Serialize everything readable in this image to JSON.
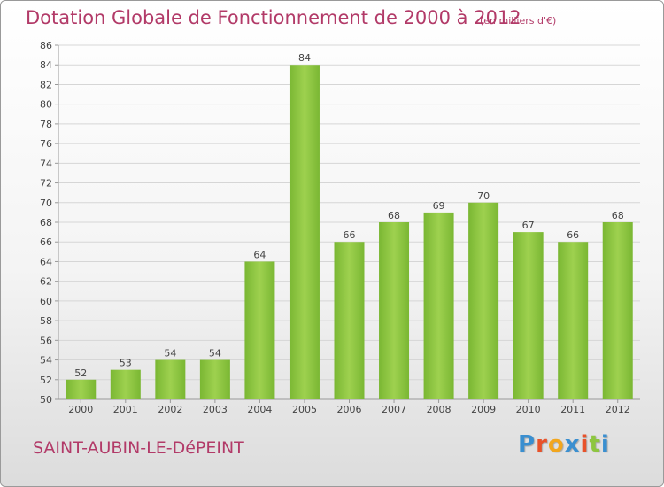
{
  "header": {
    "title": "Dotation Globale de Fonctionnement de 2000 à 2012",
    "subtitle": "(en milliers d'€)"
  },
  "footer": {
    "commune": "SAINT-AUBIN-LE-DéPEINT",
    "logo_text": "Proxiti",
    "logo_colors": [
      "#3a8fd0",
      "#e8522a",
      "#f2a61d",
      "#3a8fd0",
      "#e8522a",
      "#8dc63f",
      "#3a8fd0"
    ]
  },
  "chart_data": {
    "type": "bar",
    "categories": [
      "2000",
      "2001",
      "2002",
      "2003",
      "2004",
      "2005",
      "2006",
      "2007",
      "2008",
      "2009",
      "2010",
      "2011",
      "2012"
    ],
    "values": [
      52,
      53,
      54,
      54,
      64,
      84,
      66,
      68,
      69,
      70,
      67,
      66,
      68
    ],
    "title": "Dotation Globale de Fonctionnement de 2000 à 2012",
    "subtitle": "(en milliers d'€)",
    "ylim": [
      50,
      86
    ],
    "yticks": [
      50,
      52,
      54,
      56,
      58,
      60,
      62,
      64,
      66,
      68,
      70,
      72,
      74,
      76,
      78,
      80,
      82,
      84,
      86
    ],
    "grid": true,
    "bar_color": "#7ab733",
    "bar_color_light": "#9ed14f"
  }
}
